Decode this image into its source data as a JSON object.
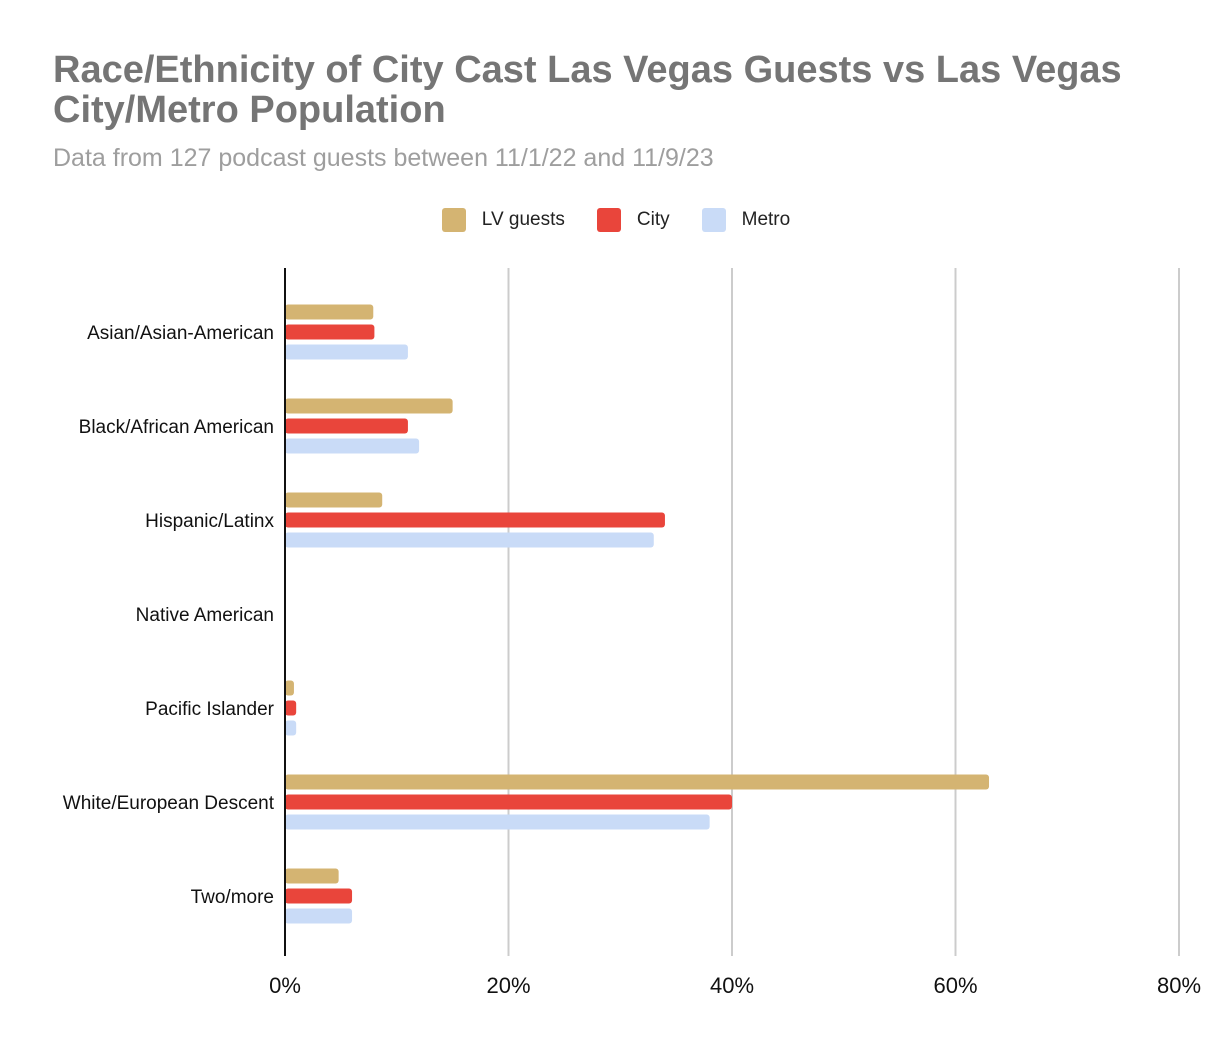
{
  "chart_data": {
    "type": "bar",
    "orientation": "horizontal",
    "title": "Race/Ethnicity of City Cast Las Vegas Guests vs Las Vegas City/Metro Population",
    "subtitle": "Data from 127 podcast guests between 11/1/22 and 11/9/23",
    "categories": [
      "Asian/Asian-American",
      "Black/African American",
      "Hispanic/Latinx",
      "Native American",
      "Pacific Islander",
      "White/European Descent",
      "Two/more"
    ],
    "series": [
      {
        "name": "LV guests",
        "color": "#d4b472",
        "values": [
          7.9,
          15.0,
          8.7,
          0,
          0.8,
          63.0,
          4.8
        ]
      },
      {
        "name": "City",
        "color": "#e9453b",
        "values": [
          8.0,
          11.0,
          34.0,
          0,
          1.0,
          40.0,
          6.0
        ]
      },
      {
        "name": "Metro",
        "color": "#c9dbf7",
        "values": [
          11.0,
          12.0,
          33.0,
          0,
          1.0,
          38.0,
          6.0
        ]
      }
    ],
    "xlim": [
      0,
      80
    ],
    "xticks": [
      0,
      20,
      40,
      60,
      80
    ],
    "xtick_labels": [
      "0%",
      "20%",
      "40%",
      "60%",
      "80%"
    ],
    "grid": true,
    "legend": "top"
  }
}
